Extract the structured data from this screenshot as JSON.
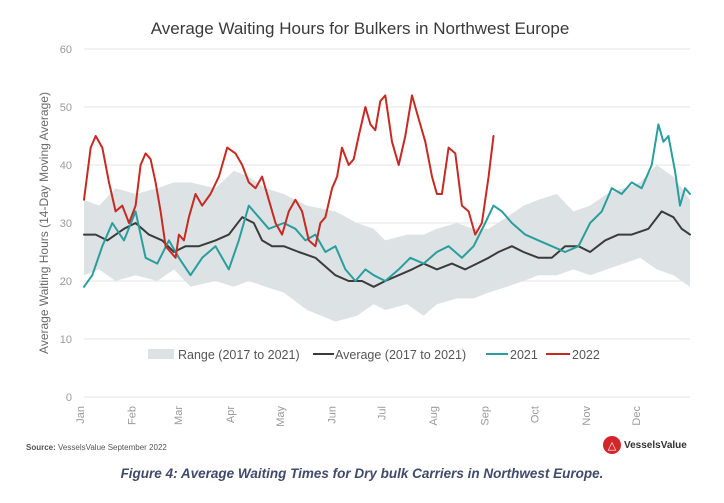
{
  "chart_data": {
    "type": "line",
    "title": "Average Waiting Hours for Bulkers in Northwest Europe",
    "xlabel": "",
    "ylabel": "Average Waiting Hours (14-Day Moving Average)",
    "ylim": [
      0,
      60
    ],
    "yticks": [
      0,
      10,
      20,
      30,
      40,
      50,
      60
    ],
    "grid": true,
    "legend_position": "bottom-inside",
    "x_domain": [
      1,
      365
    ],
    "month_labels": [
      "Jan",
      "Feb",
      "Mar",
      "Apr",
      "May",
      "Jun",
      "Jul",
      "Aug",
      "Sep",
      "Oct",
      "Nov",
      "Dec"
    ],
    "month_start_days": [
      1,
      32,
      60,
      91,
      121,
      152,
      182,
      213,
      244,
      274,
      305,
      335
    ],
    "range_band": {
      "name": "Range (2017 to 2021)",
      "color": "#dde3e4",
      "x": [
        1,
        10,
        20,
        32,
        45,
        55,
        65,
        80,
        91,
        100,
        110,
        121,
        135,
        152,
        165,
        175,
        182,
        195,
        205,
        213,
        225,
        235,
        244,
        255,
        265,
        274,
        285,
        295,
        305,
        315,
        325,
        335,
        345,
        355,
        365
      ],
      "low": [
        21,
        22,
        20,
        21,
        20,
        22,
        19,
        20,
        19,
        20,
        19,
        18,
        15,
        13,
        14,
        16,
        15,
        16,
        14,
        16,
        17,
        17,
        18,
        19,
        20,
        21,
        21,
        22,
        21,
        22,
        23,
        24,
        22,
        21,
        19
      ],
      "high": [
        34,
        33,
        36,
        35,
        36,
        37,
        37,
        36,
        39,
        38,
        36,
        35,
        33,
        32,
        30,
        29,
        27,
        28,
        28,
        29,
        30,
        29,
        29,
        31,
        33,
        34,
        35,
        32,
        33,
        35,
        36,
        37,
        40,
        38,
        34
      ]
    },
    "series": [
      {
        "name": "Average (2017 to 2021)",
        "color": "#3b3b3b",
        "x": [
          1,
          8,
          15,
          25,
          32,
          40,
          48,
          55,
          62,
          70,
          80,
          88,
          96,
          103,
          108,
          114,
          121,
          130,
          140,
          152,
          160,
          168,
          175,
          182,
          190,
          198,
          205,
          213,
          222,
          230,
          237,
          244,
          250,
          258,
          265,
          274,
          282,
          290,
          298,
          305,
          314,
          322,
          330,
          340,
          348,
          355,
          360,
          365
        ],
        "values": [
          28,
          28,
          27,
          29,
          30,
          28,
          27,
          25,
          26,
          26,
          27,
          28,
          31,
          30,
          27,
          26,
          26,
          25,
          24,
          21,
          20,
          20,
          19,
          20,
          21,
          22,
          23,
          22,
          23,
          22,
          23,
          24,
          25,
          26,
          25,
          24,
          24,
          26,
          26,
          25,
          27,
          28,
          28,
          29,
          32,
          31,
          29,
          28
        ]
      },
      {
        "name": "2021",
        "color": "#2a9d9e",
        "x": [
          1,
          6,
          12,
          18,
          25,
          32,
          38,
          45,
          52,
          58,
          65,
          72,
          80,
          88,
          94,
          100,
          106,
          112,
          121,
          128,
          134,
          140,
          146,
          152,
          158,
          164,
          170,
          175,
          182,
          190,
          197,
          205,
          213,
          220,
          228,
          235,
          242,
          247,
          252,
          258,
          266,
          274,
          282,
          290,
          298,
          305,
          312,
          318,
          324,
          330,
          336,
          342,
          346,
          349,
          352,
          356,
          359,
          362,
          365
        ],
        "values": [
          19,
          21,
          26,
          30,
          27,
          32,
          24,
          23,
          27,
          24,
          21,
          24,
          26,
          22,
          27,
          33,
          31,
          29,
          30,
          29,
          27,
          28,
          25,
          26,
          22,
          20,
          22,
          21,
          20,
          22,
          24,
          23,
          25,
          26,
          24,
          26,
          30,
          33,
          32,
          30,
          28,
          27,
          26,
          25,
          26,
          30,
          32,
          36,
          35,
          37,
          36,
          40,
          47,
          44,
          45,
          39,
          33,
          36,
          35
        ]
      },
      {
        "name": "2022",
        "color": "#c62a22",
        "x": [
          1,
          5,
          8,
          12,
          16,
          20,
          24,
          28,
          32,
          35,
          38,
          41,
          44,
          47,
          50,
          53,
          56,
          58,
          61,
          64,
          68,
          72,
          77,
          82,
          87,
          92,
          96,
          100,
          104,
          108,
          112,
          116,
          120,
          124,
          128,
          132,
          136,
          140,
          143,
          146,
          150,
          153,
          156,
          160,
          163,
          166,
          170,
          173,
          176,
          179,
          182,
          186,
          190,
          194,
          198,
          202,
          206,
          210,
          213,
          216,
          220,
          224,
          228,
          232,
          236,
          240,
          244,
          247
        ],
        "values": [
          34,
          43,
          45,
          43,
          37,
          32,
          33,
          30,
          33,
          40,
          42,
          41,
          37,
          32,
          26,
          25,
          24,
          28,
          27,
          31,
          35,
          33,
          35,
          38,
          43,
          42,
          40,
          37,
          36,
          38,
          34,
          30,
          28,
          32,
          34,
          32,
          27,
          26,
          30,
          31,
          36,
          38,
          43,
          40,
          41,
          45,
          50,
          47,
          46,
          51,
          52,
          44,
          40,
          45,
          52,
          48,
          44,
          38,
          35,
          35,
          43,
          42,
          33,
          32,
          28,
          30,
          38,
          45
        ]
      }
    ]
  },
  "source": {
    "label": "Source:",
    "text": "VesselsValue September 2022"
  },
  "logo": {
    "text": "VesselsValue",
    "icon": "vesselsvalue-logo-icon"
  },
  "caption": "Figure 4: Average Waiting Times for Dry bulk Carriers in Northwest Europe."
}
